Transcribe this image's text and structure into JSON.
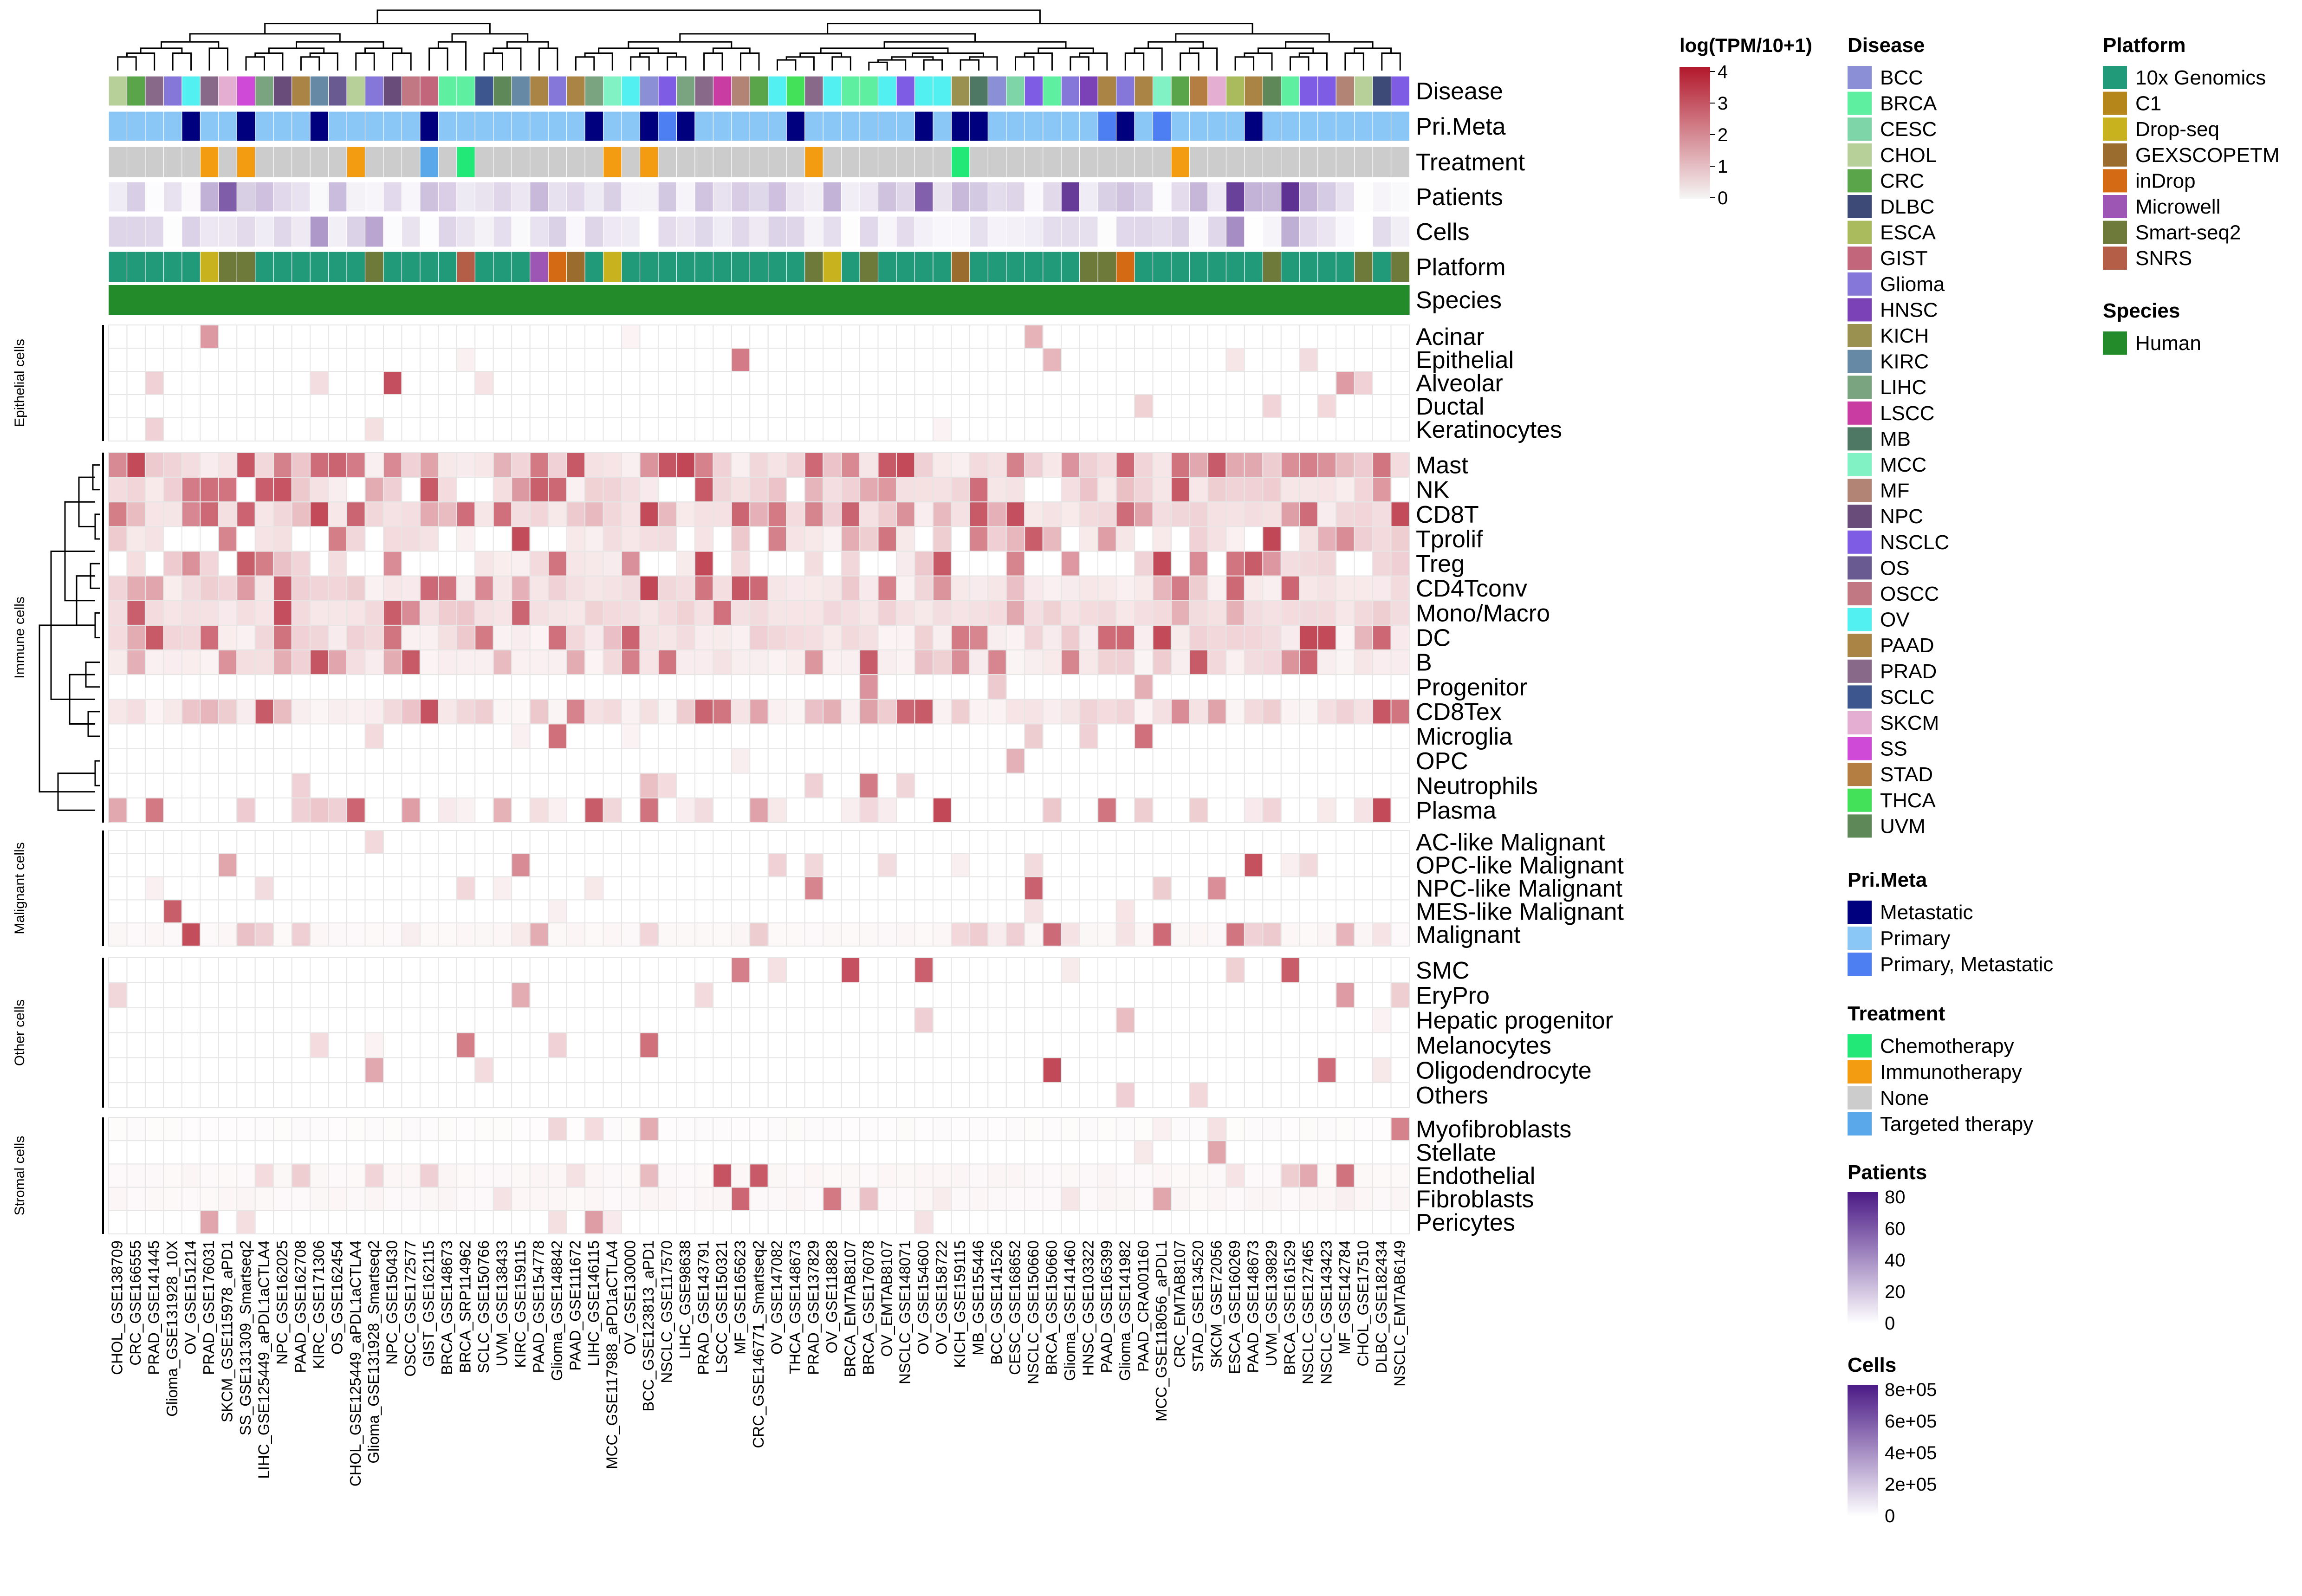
{
  "chart_data": {
    "type": "heatmap",
    "title": "",
    "columns": [
      "CHOL_GSE138709",
      "CRC_GSE166555",
      "PRAD_GSE141445",
      "Glioma_GSE131928_10X",
      "OV_GSE151214",
      "PRAD_GSE176031",
      "SKCM_GSE115978_aPD1",
      "SS_GSE131309_Smartseq2",
      "LIHC_GSE125449_aPDL1aCTLA4",
      "NPC_GSE162025",
      "PAAD_GSE162708",
      "KIRC_GSE171306",
      "OS_GSE162454",
      "CHOL_GSE125449_aPDL1aCTLA4",
      "Glioma_GSE131928_Smartseq2",
      "NPC_GSE150430",
      "OSCC_GSE172577",
      "GIST_GSE162115",
      "BRCA_GSE148673",
      "BRCA_SRP114962",
      "SCLC_GSE150766",
      "UVM_GSE138433",
      "KIRC_GSE159115",
      "PAAD_GSE154778",
      "Glioma_GSE148842",
      "PAAD_GSE111672",
      "LIHC_GSE146115",
      "MCC_GSE117988_aPD1aCTLA4",
      "OV_GSE130000",
      "BCC_GSE123813_aPD1",
      "NSCLC_GSE117570",
      "LIHC_GSE98638",
      "PRAD_GSE143791",
      "LSCC_GSE150321",
      "MF_GSE165623",
      "CRC_GSE146771_Smartseq2",
      "OV_GSE147082",
      "THCA_GSE148673",
      "PRAD_GSE137829",
      "OV_GSE118828",
      "BRCA_EMTAB8107",
      "BRCA_GSE176078",
      "OV_EMTAB8107",
      "NSCLC_GSE148071",
      "OV_GSE154600",
      "OV_GSE158722",
      "KICH_GSE159115",
      "MB_GSE155446",
      "BCC_GSE141526",
      "CESC_GSE168652",
      "NSCLC_GSE150660",
      "BRCA_GSE150660",
      "Glioma_GSE141460",
      "HNSC_GSE103322",
      "PAAD_GSE165399",
      "Glioma_GSE141982",
      "PAAD_CRA001160",
      "MCC_GSE118056_aPDL1",
      "CRC_EMTAB8107",
      "STAD_GSE134520",
      "SKCM_GSE72056",
      "ESCA_GSE160269",
      "PAAD_GSE148673",
      "UVM_GSE139829",
      "BRCA_GSE161529",
      "NSCLC_GSE127465",
      "NSCLC_GSE143423",
      "MF_GSE142784",
      "CHOL_GSE17510",
      "DLBC_GSE182434",
      "NSCLC_EMTAB6149"
    ],
    "annotation_rows": [
      "Disease",
      "Pri.Meta",
      "Treatment",
      "Patients",
      "Cells",
      "Platform",
      "Species"
    ],
    "row_groups": [
      {
        "name": "Epithelial cells",
        "rows": [
          "Acinar",
          "Epithelial",
          "Alveolar",
          "Ductal",
          "Keratinocytes"
        ]
      },
      {
        "name": "Immune cells",
        "rows": [
          "Mast",
          "NK",
          "CD8T",
          "Tprolif",
          "Treg",
          "CD4Tconv",
          "Mono/Macro",
          "DC",
          "B",
          "Progenitor",
          "CD8Tex",
          "Microglia",
          "OPC",
          "Neutrophils",
          "Plasma"
        ]
      },
      {
        "name": "Malignant cells",
        "rows": [
          "AC-like Malignant",
          "OPC-like Malignant",
          "NPC-like Malignant",
          "MES-like Malignant",
          "Malignant"
        ]
      },
      {
        "name": "Other cells",
        "rows": [
          "SMC",
          "EryPro",
          "Hepatic progenitor",
          "Melanocytes",
          "Oligodendrocyte",
          "Others"
        ]
      },
      {
        "name": "Stromal cells",
        "rows": [
          "Myofibroblasts",
          "Stellate",
          "Endothelial",
          "Fibroblasts",
          "Pericytes"
        ]
      }
    ],
    "color_scale": {
      "title": "log(TPM/10+1)",
      "ticks": [
        "4",
        "3",
        "2",
        "1",
        "0"
      ],
      "domain": [
        0,
        4
      ],
      "low": "#f5f5f5",
      "high": "#b2182b"
    },
    "legends": {
      "Disease": {
        "title": "Disease",
        "items": [
          {
            "label": "BCC",
            "color": "#8b8fd6"
          },
          {
            "label": "BRCA",
            "color": "#5ef0a0"
          },
          {
            "label": "CESC",
            "color": "#7ed6a8"
          },
          {
            "label": "CHOL",
            "color": "#b7cf98"
          },
          {
            "label": "CRC",
            "color": "#5aa54a"
          },
          {
            "label": "DLBC",
            "color": "#3d4a78"
          },
          {
            "label": "ESCA",
            "color": "#a9bb5c"
          },
          {
            "label": "GIST",
            "color": "#c2667c"
          },
          {
            "label": "Glioma",
            "color": "#8576da"
          },
          {
            "label": "HNSC",
            "color": "#7b42b8"
          },
          {
            "label": "KICH",
            "color": "#9a9050"
          },
          {
            "label": "KIRC",
            "color": "#6689a6"
          },
          {
            "label": "LIHC",
            "color": "#7aa480"
          },
          {
            "label": "LSCC",
            "color": "#c93ca2"
          },
          {
            "label": "MB",
            "color": "#4e7864"
          },
          {
            "label": "MCC",
            "color": "#80f2c4"
          },
          {
            "label": "MF",
            "color": "#b28476"
          },
          {
            "label": "NPC",
            "color": "#6a4c7a"
          },
          {
            "label": "NSCLC",
            "color": "#7f5ce4"
          },
          {
            "label": "OS",
            "color": "#6a5a92"
          },
          {
            "label": "OSCC",
            "color": "#c27882"
          },
          {
            "label": "OV",
            "color": "#52f0f0"
          },
          {
            "label": "PAAD",
            "color": "#aa8444"
          },
          {
            "label": "PRAD",
            "color": "#88698a"
          },
          {
            "label": "SCLC",
            "color": "#3d568e"
          },
          {
            "label": "SKCM",
            "color": "#e3aed2"
          },
          {
            "label": "SS",
            "color": "#cf4ad6"
          },
          {
            "label": "STAD",
            "color": "#b47d42"
          },
          {
            "label": "THCA",
            "color": "#43e05a"
          },
          {
            "label": "UVM",
            "color": "#5e8858"
          }
        ]
      },
      "Pri.Meta": {
        "title": "Pri.Meta",
        "items": [
          {
            "label": "Metastatic",
            "color": "#00007f"
          },
          {
            "label": "Primary",
            "color": "#8ac6f6"
          },
          {
            "label": "Primary, Metastatic",
            "color": "#4d7ff2"
          }
        ]
      },
      "Treatment": {
        "title": "Treatment",
        "items": [
          {
            "label": "Chemotherapy",
            "color": "#22e878"
          },
          {
            "label": "Immunotherapy",
            "color": "#f39c12"
          },
          {
            "label": "None",
            "color": "#cccccc"
          },
          {
            "label": "Targeted therapy",
            "color": "#5aa8ea"
          }
        ]
      },
      "Platform": {
        "title": "Platform",
        "items": [
          {
            "label": "10x Genomics",
            "color": "#219a7a"
          },
          {
            "label": "C1",
            "color": "#b5861a"
          },
          {
            "label": "Drop-seq",
            "color": "#c8b21e"
          },
          {
            "label": "GEXSCOPETM",
            "color": "#9a6c2e"
          },
          {
            "label": "inDrop",
            "color": "#d46a14"
          },
          {
            "label": "Microwell",
            "color": "#9e56b4"
          },
          {
            "label": "Smart-seq2",
            "color": "#6e7a3a"
          },
          {
            "label": "SNRS",
            "color": "#b45e48"
          }
        ]
      },
      "Species": {
        "title": "Species",
        "items": [
          {
            "label": "Human",
            "color": "#238b2a"
          }
        ]
      },
      "Patients": {
        "title": "Patients",
        "ticks": [
          "80",
          "60",
          "40",
          "20",
          "0"
        ],
        "low": "#ffffff",
        "high": "#4b1a86"
      },
      "Cells": {
        "title": "Cells",
        "ticks": [
          "8e+05",
          "6e+05",
          "4e+05",
          "2e+05",
          "0"
        ],
        "low": "#ffffff",
        "high": "#4b1a86"
      }
    }
  }
}
